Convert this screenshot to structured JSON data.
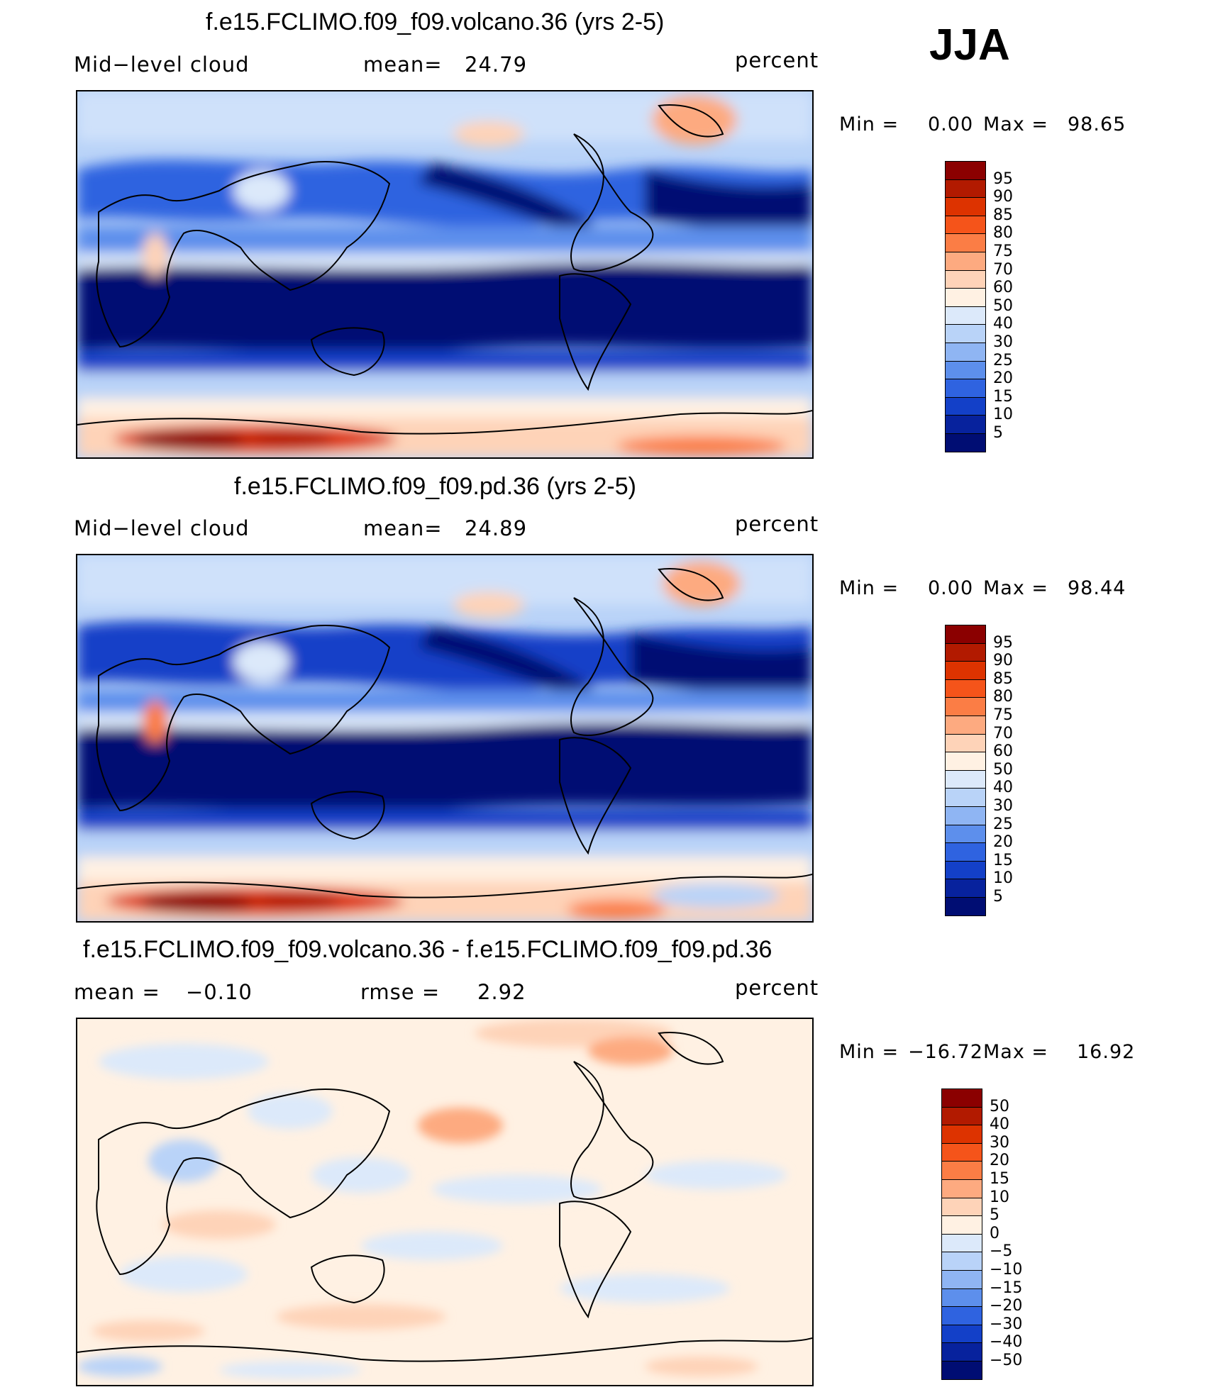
{
  "season": "JJA",
  "panels": [
    {
      "id": "volcano",
      "title": "f.e15.FCLIMO.f09_f09.volcano.36 (yrs 2-5)",
      "left_label": "Mid−level cloud",
      "stat_label": "mean=",
      "stat_value": "24.79",
      "units": "percent",
      "min_label": "Min =",
      "min_value": "0.00",
      "max_label": "Max =",
      "max_value": "98.65",
      "colorbar": {
        "labels": [
          "95",
          "90",
          "85",
          "80",
          "75",
          "70",
          "60",
          "50",
          "40",
          "30",
          "25",
          "20",
          "15",
          "10",
          "5"
        ],
        "colors": [
          "#8b0000",
          "#b21a00",
          "#dd3300",
          "#f5541a",
          "#fb7d45",
          "#fdaa80",
          "#fed3b8",
          "#fff1e3",
          "#dce9fa",
          "#b9d3f8",
          "#8fb5f3",
          "#5d8fec",
          "#2f63e0",
          "#1340c8",
          "#07229d",
          "#000d73"
        ]
      }
    },
    {
      "id": "pd",
      "title": "f.e15.FCLIMO.f09_f09.pd.36 (yrs 2-5)",
      "left_label": "Mid−level cloud",
      "stat_label": "mean=",
      "stat_value": "24.89",
      "units": "percent",
      "min_label": "Min =",
      "min_value": "0.00",
      "max_label": "Max =",
      "max_value": "98.44",
      "colorbar": {
        "labels": [
          "95",
          "90",
          "85",
          "80",
          "75",
          "70",
          "60",
          "50",
          "40",
          "30",
          "25",
          "20",
          "15",
          "10",
          "5"
        ],
        "colors": [
          "#8b0000",
          "#b21a00",
          "#dd3300",
          "#f5541a",
          "#fb7d45",
          "#fdaa80",
          "#fed3b8",
          "#fff1e3",
          "#dce9fa",
          "#b9d3f8",
          "#8fb5f3",
          "#5d8fec",
          "#2f63e0",
          "#1340c8",
          "#07229d",
          "#000d73"
        ]
      }
    },
    {
      "id": "diff",
      "title": "f.e15.FCLIMO.f09_f09.volcano.36 - f.e15.FCLIMO.f09_f09.pd.36",
      "left_label": "mean =",
      "left_value": "−0.10",
      "stat_label": "rmse =",
      "stat_value": "2.92",
      "units": "percent",
      "min_label": "Min =",
      "min_value": "−16.72",
      "max_label": "Max =",
      "max_value": "16.92",
      "colorbar": {
        "labels": [
          "50",
          "40",
          "30",
          "20",
          "15",
          "10",
          "5",
          "0",
          "−5",
          "−10",
          "−15",
          "−20",
          "−30",
          "−40",
          "−50"
        ],
        "colors": [
          "#8b0000",
          "#b21a00",
          "#dd3300",
          "#f5541a",
          "#fb7d45",
          "#fdaa80",
          "#fed3b8",
          "#fff1e3",
          "#dce9fa",
          "#b9d3f8",
          "#8fb5f3",
          "#5d8fec",
          "#2f63e0",
          "#1340c8",
          "#07229d",
          "#000d73"
        ]
      }
    }
  ]
}
